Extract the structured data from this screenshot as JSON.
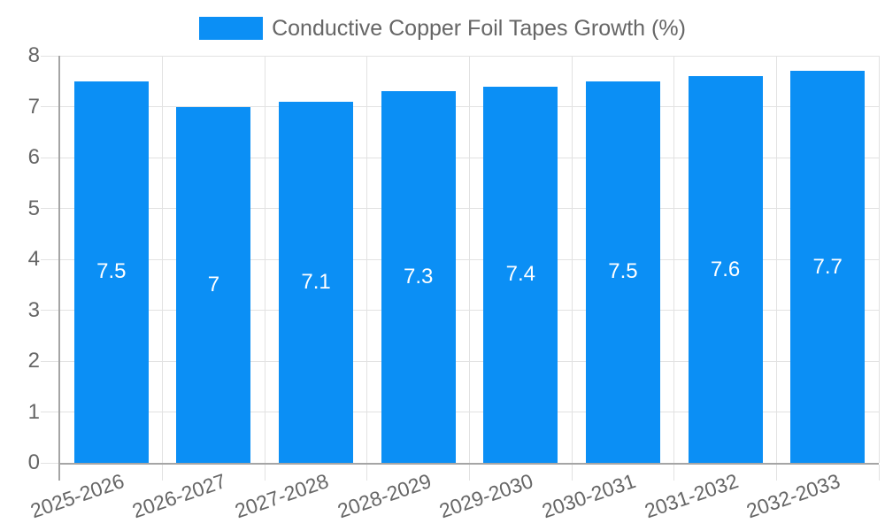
{
  "chart_data": {
    "type": "bar",
    "title": "Conductive Copper Foil Tapes Growth (%)",
    "legend": {
      "label": "Conductive Copper Foil Tapes Growth (%)",
      "position": "top-center"
    },
    "categories": [
      "2025-2026",
      "2026-2027",
      "2027-2028",
      "2028-2029",
      "2029-2030",
      "2030-2031",
      "2031-2032",
      "2032-2033"
    ],
    "series": [
      {
        "name": "Conductive Copper Foil Tapes Growth (%)",
        "values": [
          7.5,
          7,
          7.1,
          7.3,
          7.4,
          7.5,
          7.6,
          7.7
        ],
        "labels": [
          "7.5",
          "7",
          "7.1",
          "7.3",
          "7.4",
          "7.5",
          "7.6",
          "7.7"
        ]
      }
    ],
    "xlabel": "",
    "ylabel": "",
    "ylim": [
      0,
      8
    ],
    "yticks": [
      "0",
      "1",
      "2",
      "3",
      "4",
      "5",
      "6",
      "7",
      "8"
    ],
    "grid": true,
    "x_tick_rotation_deg": -19,
    "bar_label_position": "center",
    "colors": {
      "bar": "#0b8ff5",
      "grid": "#e2e2e2",
      "axis": "#a5a5a5",
      "tick_text": "#666666",
      "legend_text": "#666666",
      "bar_label": "#ffffff",
      "background": "#ffffff"
    }
  }
}
